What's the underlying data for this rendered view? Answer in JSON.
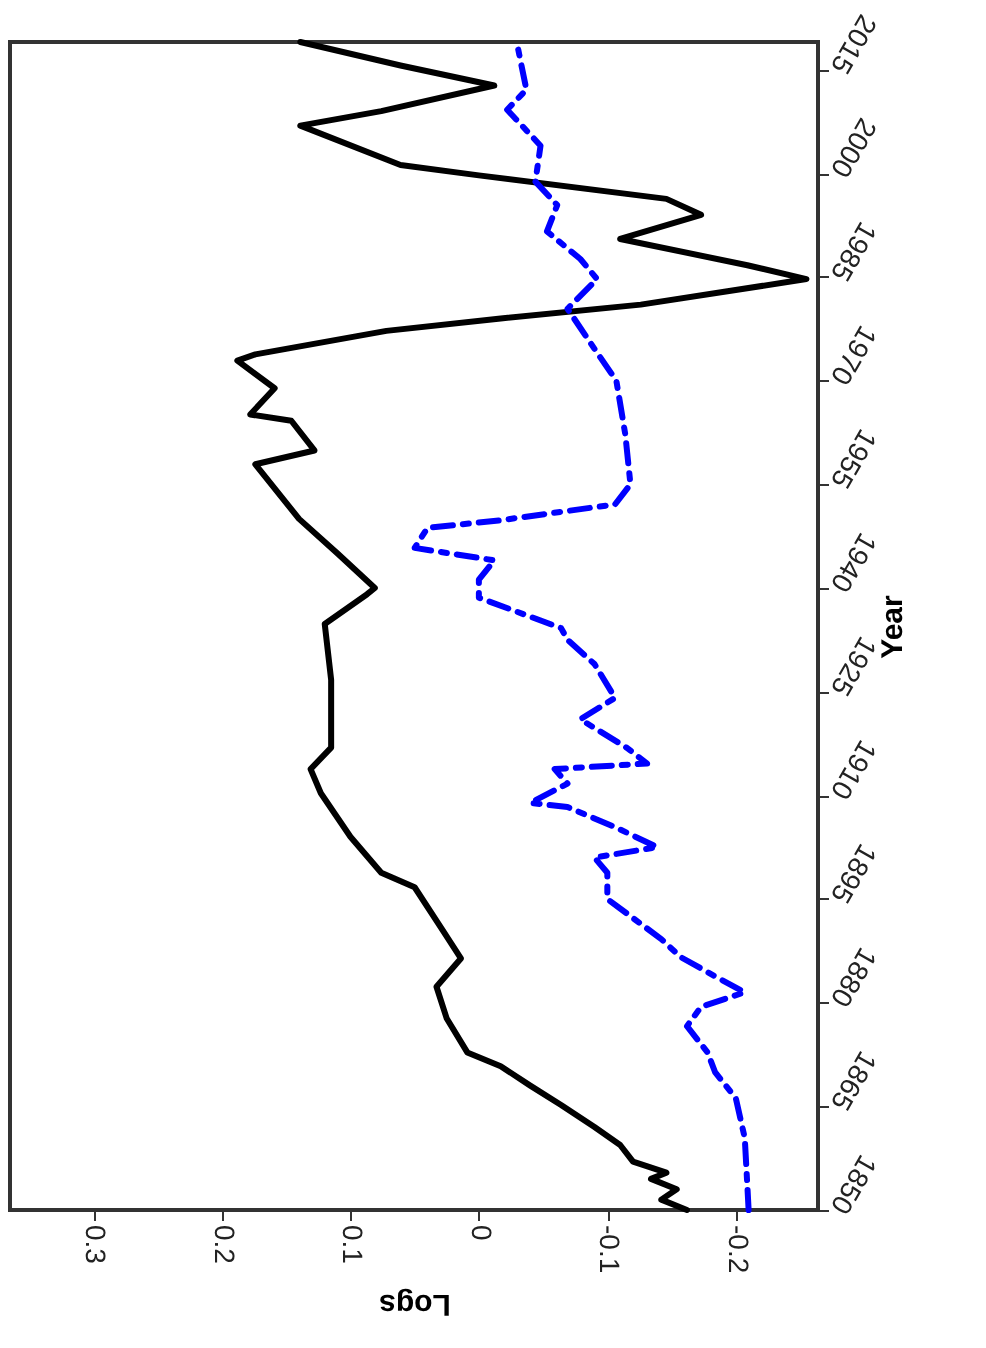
{
  "chart_data": {
    "type": "line",
    "xlabel": "Logs",
    "ylabel": "Year",
    "xlim": [
      0.365,
      -0.264
    ],
    "xticks": [
      0.3,
      0.2,
      0.1,
      0,
      -0.1,
      -0.2
    ],
    "ylim": [
      1850,
      2019
    ],
    "yticks": [
      1850,
      1865,
      1880,
      1895,
      1910,
      1925,
      1940,
      1955,
      1970,
      1985,
      2000,
      2015
    ],
    "grid": false,
    "marker": "none",
    "series": [
      {
        "color": "#000000",
        "line_style": "solid",
        "values": [
          1850,
          1851.5,
          1853,
          1854.5,
          1855.4,
          1857,
          1859.4,
          1862,
          1865.2,
          1868,
          1870.8,
          1872.8,
          1877.7,
          1882.3,
          1886.4,
          1891,
          1896.7,
          1898.8,
          1904,
          1910.3,
          1913.8,
          1916.9,
          1926.7,
          1934.8,
          1939.1,
          1940,
          1945,
          1950,
          1957.9,
          1959.9,
          1964.2,
          1965.1,
          1968.9,
          1972.9,
          1973.8,
          1977.2,
          1979,
          1981,
          1984.7,
          1986.7,
          1990.5,
          1994,
          1996.3,
          1999.7,
          2001.2,
          2006.9,
          2009,
          2012.7,
          2015.6,
          2019
        ],
        "x": [
          -0.162,
          -0.142,
          -0.154,
          -0.134,
          -0.146,
          -0.12,
          -0.11,
          -0.09,
          -0.064,
          -0.04,
          -0.017,
          0.009,
          0.025,
          0.033,
          0.014,
          0.03,
          0.05,
          0.076,
          0.1,
          0.123,
          0.131,
          0.115,
          0.115,
          0.12,
          0.087,
          0.081,
          0.11,
          0.14,
          0.174,
          0.128,
          0.146,
          0.178,
          0.159,
          0.188,
          0.174,
          0.072,
          -0.017,
          -0.126,
          -0.255,
          -0.209,
          -0.11,
          -0.173,
          -0.146,
          0.0,
          0.061,
          0.139,
          0.076,
          -0.012,
          0.061,
          0.139
        ]
      },
      {
        "color": "#0000ff",
        "line_style": "dashed",
        "values": [
          1850,
          1853.5,
          1860.4,
          1866.2,
          1869.9,
          1872.8,
          1876.6,
          1879.4,
          1881.5,
          1883.8,
          1886.6,
          1889.2,
          1895,
          1898.8,
          1901,
          1902.5,
          1905.4,
          1908.3,
          1908.9,
          1911.7,
          1913.8,
          1914.6,
          1916.9,
          1921,
          1924.1,
          1929,
          1932.5,
          1934.2,
          1938.6,
          1941.2,
          1944,
          1945.8,
          1948.7,
          1949.8,
          1952.1,
          1955,
          1962.2,
          1970,
          1974.6,
          1980.4,
          1984.7,
          1987.6,
          1991.6,
          1995.4,
          1998.8,
          2004,
          2009.2,
          2012.1,
          2018.5
        ],
        "x": [
          -0.21,
          -0.209,
          -0.207,
          -0.2,
          -0.184,
          -0.178,
          -0.162,
          -0.173,
          -0.207,
          -0.184,
          -0.157,
          -0.142,
          -0.1,
          -0.1,
          -0.09,
          -0.139,
          -0.106,
          -0.069,
          -0.04,
          -0.069,
          -0.059,
          -0.131,
          -0.115,
          -0.079,
          -0.106,
          -0.09,
          -0.069,
          -0.064,
          0.0,
          0.0,
          -0.012,
          0.05,
          0.04,
          -0.017,
          -0.106,
          -0.118,
          -0.114,
          -0.107,
          -0.09,
          -0.069,
          -0.092,
          -0.079,
          -0.053,
          -0.061,
          -0.044,
          -0.048,
          -0.022,
          -0.037,
          -0.03
        ]
      }
    ]
  }
}
